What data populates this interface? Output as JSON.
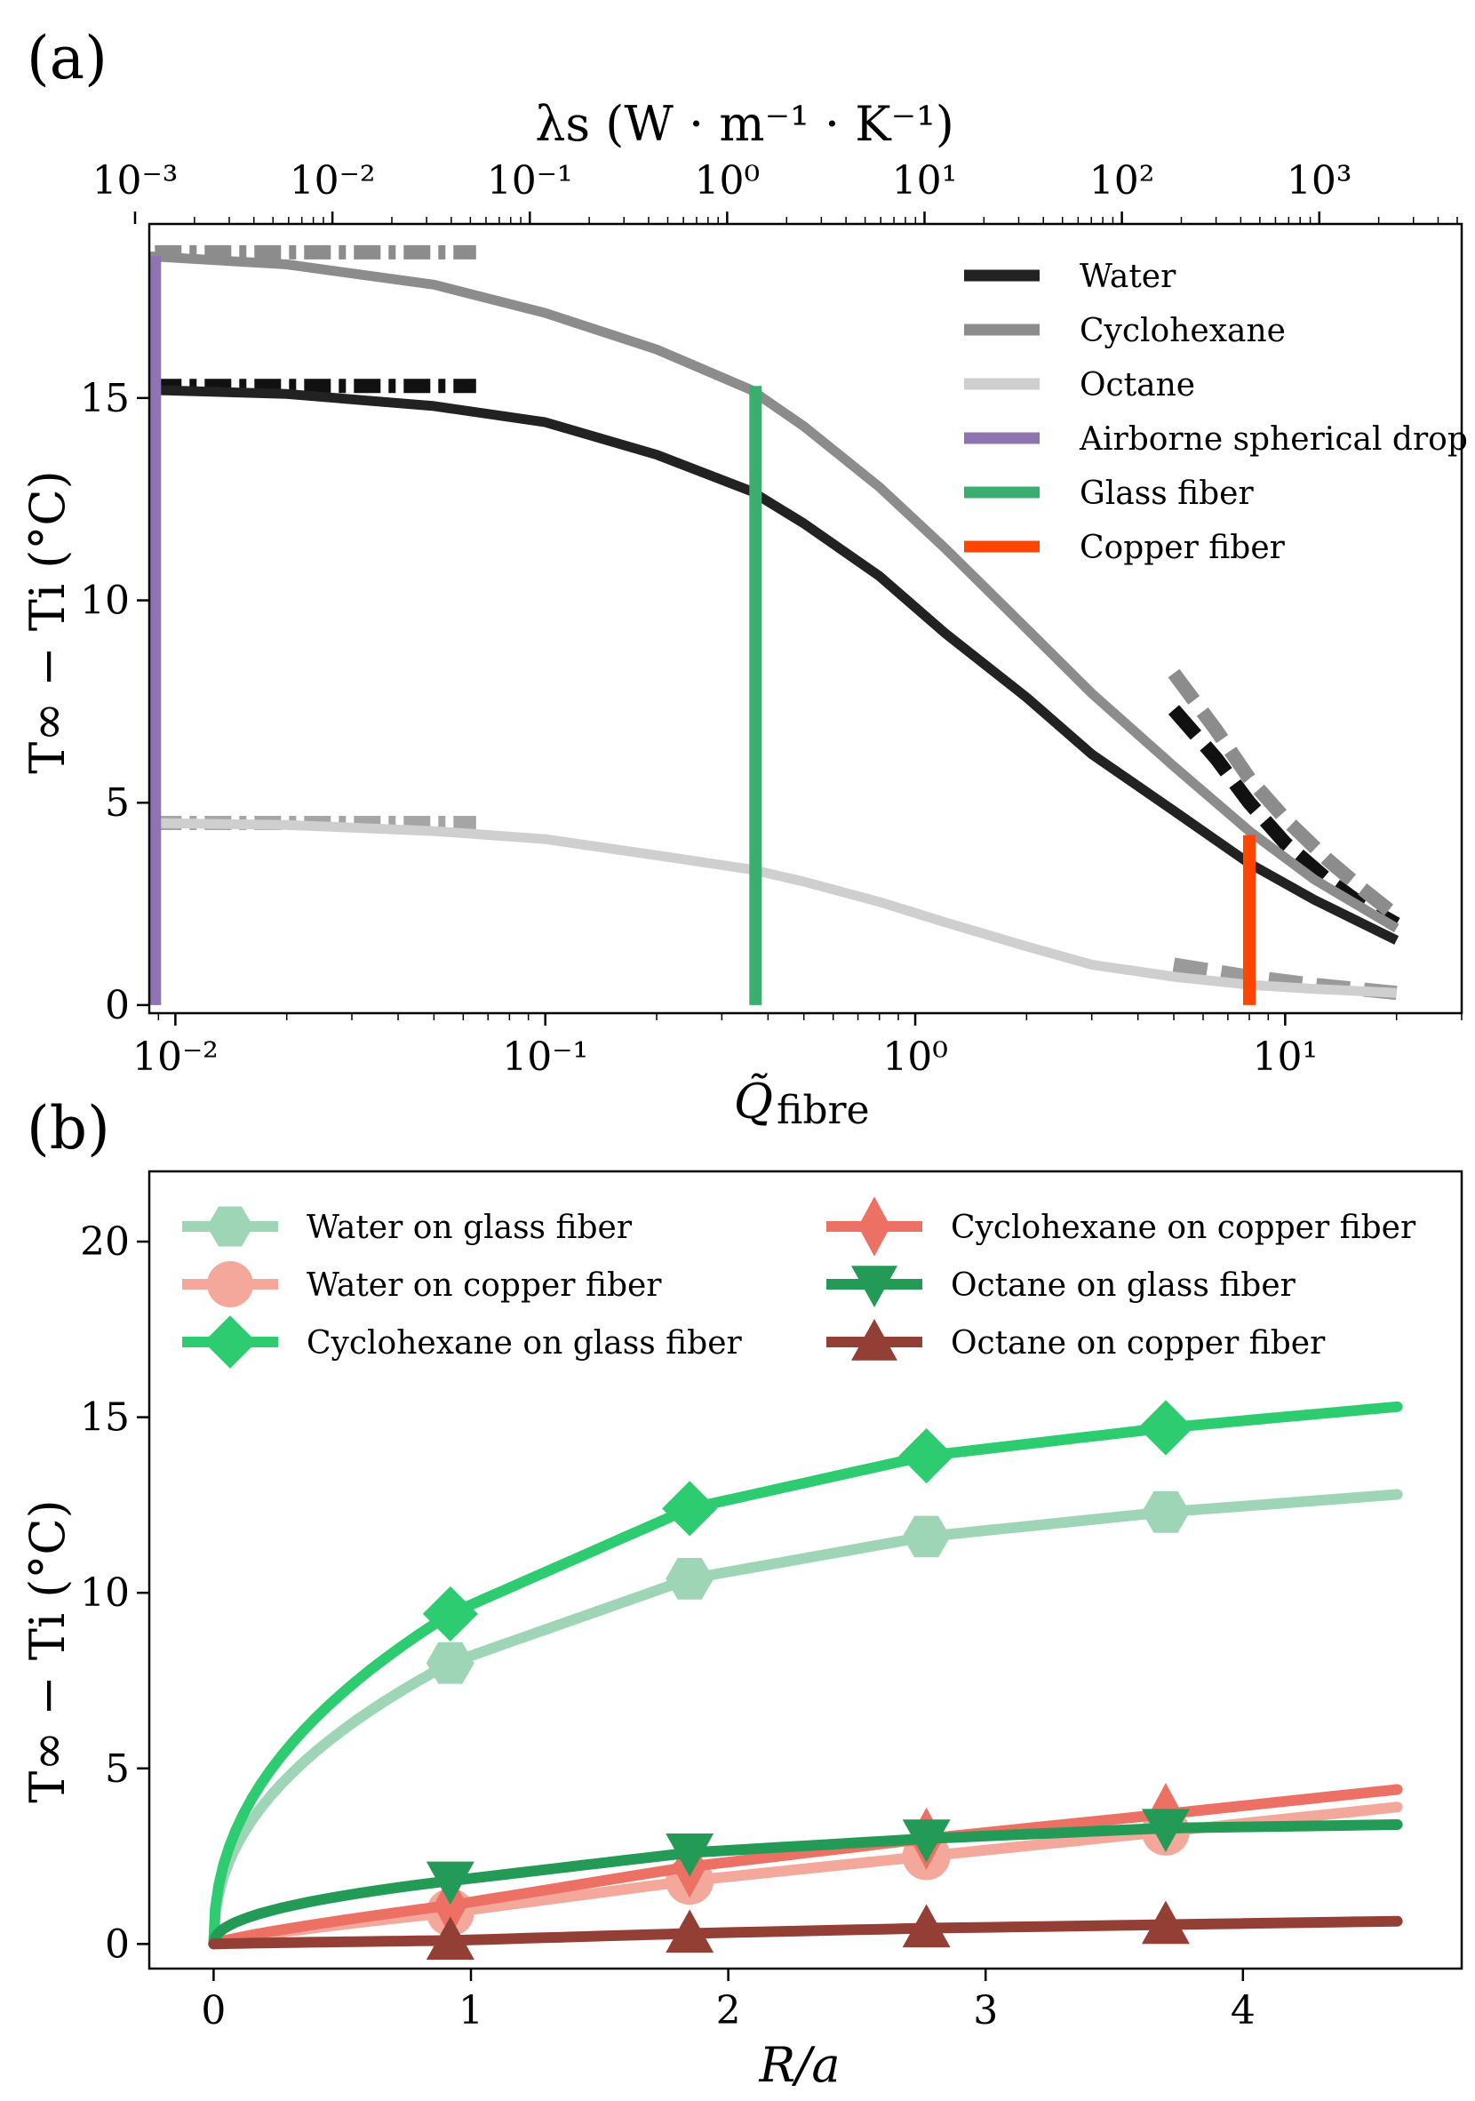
{
  "chart_data": [
    {
      "panel": "(a)",
      "type": "line",
      "xscale": "log",
      "xlabel": "Q̃",
      "xlabel_sub": "fibre",
      "ylabel": "T∞ − Ti (°C)",
      "top_xlabel": "λs (W · m⁻¹ · K⁻¹)",
      "xlim": [
        0.0085,
        30
      ],
      "ylim": [
        -0.2,
        19.3
      ],
      "xticks": [
        {
          "v": 0.01,
          "label": "10⁻²"
        },
        {
          "v": 0.1,
          "label": "10⁻¹"
        },
        {
          "v": 1,
          "label": "10⁰"
        },
        {
          "v": 10,
          "label": "10¹"
        }
      ],
      "top_xlim": [
        0.001,
        5000
      ],
      "top_xticks": [
        {
          "v": 0.001,
          "label": "10⁻³"
        },
        {
          "v": 0.01,
          "label": "10⁻²"
        },
        {
          "v": 0.1,
          "label": "10⁻¹"
        },
        {
          "v": 1,
          "label": "10⁰"
        },
        {
          "v": 10,
          "label": "10¹"
        },
        {
          "v": 100,
          "label": "10²"
        },
        {
          "v": 1000,
          "label": "10³"
        }
      ],
      "yticks": [
        0,
        5,
        10,
        15
      ],
      "legend": "top-right",
      "series": [
        {
          "name": "Water",
          "color": "#222222",
          "width": 11,
          "x": [
            0.0085,
            0.02,
            0.05,
            0.1,
            0.2,
            0.36,
            0.5,
            0.8,
            1.2,
            2,
            3,
            5,
            8,
            12,
            20
          ],
          "y": [
            15.2,
            15.1,
            14.8,
            14.4,
            13.6,
            12.7,
            11.9,
            10.6,
            9.2,
            7.6,
            6.2,
            4.8,
            3.5,
            2.6,
            1.6
          ]
        },
        {
          "name": "Cyclohexane",
          "color": "#8c8c8c",
          "width": 11,
          "x": [
            0.0085,
            0.02,
            0.05,
            0.1,
            0.2,
            0.36,
            0.5,
            0.8,
            1.2,
            2,
            3,
            5,
            8,
            12,
            20
          ],
          "y": [
            18.5,
            18.3,
            17.8,
            17.1,
            16.2,
            15.2,
            14.3,
            12.8,
            11.3,
            9.3,
            7.7,
            5.9,
            4.3,
            3.1,
            1.9
          ]
        },
        {
          "name": "Octane",
          "color": "#cfcfcf",
          "width": 11,
          "x": [
            0.0085,
            0.02,
            0.05,
            0.1,
            0.2,
            0.36,
            0.5,
            0.8,
            1.2,
            2,
            3,
            5,
            8,
            12,
            20
          ],
          "y": [
            4.5,
            4.45,
            4.3,
            4.1,
            3.7,
            3.35,
            3.05,
            2.55,
            2.05,
            1.45,
            1.0,
            0.7,
            0.5,
            0.4,
            0.3
          ]
        },
        {
          "name": "Airborne spherical drop",
          "color": "#8f73b3",
          "width": 14,
          "x": [
            0.0088,
            0.0088
          ],
          "y": [
            0,
            18.5
          ]
        },
        {
          "name": "Glass fiber",
          "color": "#3aae6e",
          "width": 14,
          "x": [
            0.37,
            0.37
          ],
          "y": [
            0,
            15.3
          ]
        },
        {
          "name": "Copper fiber",
          "color": "#ff4500",
          "width": 14,
          "x": [
            8.0,
            8.0
          ],
          "y": [
            0,
            4.2
          ]
        }
      ],
      "asymptotes": [
        {
          "color": "#111111",
          "dash": "dashdot",
          "x": [
            0.0088,
            0.065
          ],
          "y": [
            15.3,
            15.3
          ]
        },
        {
          "color": "#8c8c8c",
          "dash": "dashdot",
          "x": [
            0.0088,
            0.065
          ],
          "y": [
            18.6,
            18.6
          ]
        },
        {
          "color": "#a5a5a5",
          "dash": "dashdot",
          "x": [
            0.0088,
            0.065
          ],
          "y": [
            4.5,
            4.5
          ]
        },
        {
          "color": "#111111",
          "dash": "dashed",
          "x": [
            5,
            6.5,
            8,
            10,
            13,
            16,
            20
          ],
          "y": [
            7.3,
            6.1,
            5.0,
            4.0,
            3.1,
            2.5,
            2.0
          ]
        },
        {
          "color": "#8c8c8c",
          "dash": "dashed",
          "x": [
            5,
            6.5,
            8,
            10,
            13,
            16,
            20
          ],
          "y": [
            8.2,
            6.8,
            5.6,
            4.6,
            3.6,
            2.9,
            2.2
          ]
        },
        {
          "color": "#9a9a9a",
          "dash": "dashed",
          "x": [
            5,
            8,
            12,
            20
          ],
          "y": [
            1.0,
            0.7,
            0.5,
            0.3
          ]
        }
      ]
    },
    {
      "panel": "(b)",
      "type": "line",
      "xlabel": "R/a",
      "ylabel": "T∞ − Ti (°C)",
      "xlim": [
        -0.25,
        4.85
      ],
      "ylim": [
        -0.7,
        22
      ],
      "xticks": [
        0,
        1,
        2,
        3,
        4
      ],
      "yticks": [
        0,
        5,
        10,
        15,
        20
      ],
      "legend": "top, two columns",
      "series": [
        {
          "name": "Water on glass fiber",
          "color": "#9ed5b6",
          "marker": "hexagon",
          "x": [
            0,
            0.92,
            1.85,
            2.77,
            3.7
          ],
          "y": [
            0,
            8.0,
            10.4,
            11.6,
            12.3
          ],
          "curve_end": [
            4.6,
            12.8
          ]
        },
        {
          "name": "Water on copper fiber",
          "color": "#f4a89b",
          "marker": "circle",
          "x": [
            0,
            0.92,
            1.85,
            2.77,
            3.7
          ],
          "y": [
            0,
            0.9,
            1.8,
            2.5,
            3.2
          ],
          "curve_end": [
            4.6,
            3.9
          ]
        },
        {
          "name": "Cyclohexane on glass fiber",
          "color": "#2ecc71",
          "marker": "diamond",
          "x": [
            0,
            0.92,
            1.85,
            2.77,
            3.7
          ],
          "y": [
            0,
            9.4,
            12.4,
            13.9,
            14.7
          ],
          "curve_end": [
            4.6,
            15.3
          ]
        },
        {
          "name": "Cyclohexane on copper fiber",
          "color": "#ec7063",
          "marker": "thin_diamond",
          "x": [
            0,
            0.92,
            1.85,
            2.77,
            3.7
          ],
          "y": [
            0,
            1.1,
            2.2,
            3.0,
            3.7
          ],
          "curve_end": [
            4.6,
            4.4
          ]
        },
        {
          "name": "Octane on glass fiber",
          "color": "#239b56",
          "marker": "triangle_down",
          "x": [
            0,
            0.92,
            1.85,
            2.77,
            3.7
          ],
          "y": [
            0,
            1.8,
            2.6,
            3.0,
            3.3
          ],
          "curve_end": [
            4.6,
            3.4
          ]
        },
        {
          "name": "Octane on copper fiber",
          "color": "#943f36",
          "marker": "triangle_up",
          "x": [
            0,
            0.92,
            1.85,
            2.77,
            3.7
          ],
          "y": [
            0,
            0.1,
            0.3,
            0.45,
            0.55
          ],
          "curve_end": [
            4.6,
            0.65
          ]
        }
      ]
    }
  ],
  "text": {
    "panel_a": "(a)",
    "panel_b": "(b)",
    "a_top_label": "λs (W · m⁻¹ · K⁻¹)",
    "a_ylabel": "T∞ − Ti (°C)",
    "a_xlabel": "Q̃",
    "a_xlabel_sub": "fibre",
    "b_ylabel": "T∞ − Ti (°C)",
    "b_xlabel": "R/a"
  }
}
